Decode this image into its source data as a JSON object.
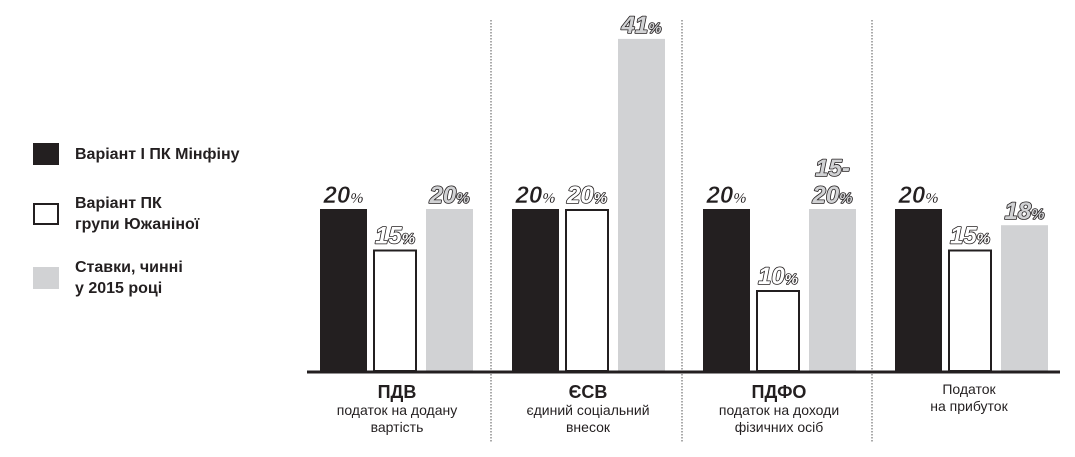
{
  "chart_data": {
    "type": "bar",
    "title": "",
    "xlabel": "",
    "ylabel": "",
    "ylim": [
      0,
      41
    ],
    "grid": false,
    "legend_position": "left",
    "categories": [
      {
        "name": "ПДВ",
        "desc": [
          "податок на додану",
          "вартість"
        ],
        "bold": true
      },
      {
        "name": "ЄСВ",
        "desc": [
          "єдиний соціальний",
          "внесок"
        ],
        "bold": true
      },
      {
        "name": "ПДФО",
        "desc": [
          "податок на доходи",
          "фізичних осіб"
        ],
        "bold": true
      },
      {
        "name": "",
        "desc": [
          "Податок",
          "на прибуток"
        ],
        "bold": false
      }
    ],
    "series": [
      {
        "name": "Варіант І ПК Мінфіну",
        "color": "#231f20",
        "values": [
          20,
          20,
          20,
          20
        ],
        "labels": [
          "20%",
          "20%",
          "20%",
          "20%"
        ]
      },
      {
        "name": "Варіант ПК групи Южаніної",
        "color": "#ffffff",
        "values": [
          15,
          20,
          10,
          15
        ],
        "labels": [
          "15%",
          "20%",
          "10%",
          "15%"
        ]
      },
      {
        "name": "Ставки, чинні у 2015 році",
        "color": "#d1d2d4",
        "values": [
          20,
          41,
          20,
          18
        ],
        "labels": [
          "20%",
          "41%",
          "15-\n20%",
          "18%"
        ]
      }
    ]
  },
  "legend": [
    {
      "label": "Варіант І ПК Мінфіну"
    },
    {
      "label": "Варіант ПК\nгрупи Южаніної"
    },
    {
      "label": "Ставки, чинні\nу 2015 році"
    }
  ]
}
